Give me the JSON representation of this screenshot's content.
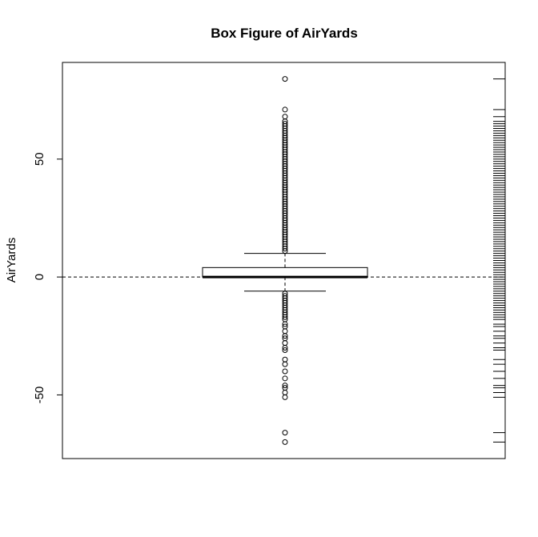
{
  "chart_data": {
    "type": "boxplot",
    "title": "Box Figure of AirYards",
    "xlabel": "",
    "ylabel": "AirYards",
    "ylim": [
      -77,
      91
    ],
    "yticks": [
      -50,
      0,
      50
    ],
    "ytick_labels": [
      "-50",
      "0",
      "50"
    ],
    "grid": false,
    "reference_line": {
      "y": 0,
      "style": "dashed"
    },
    "box": {
      "lower_whisker": -6,
      "q1": 0,
      "median": 0,
      "q3": 4,
      "upper_whisker": 10
    },
    "outliers_upper": [
      11,
      12,
      13,
      14,
      15,
      16,
      17,
      18,
      19,
      20,
      21,
      22,
      23,
      24,
      25,
      26,
      27,
      28,
      29,
      30,
      31,
      32,
      33,
      34,
      35,
      36,
      37,
      38,
      39,
      40,
      41,
      42,
      43,
      44,
      45,
      46,
      47,
      48,
      49,
      50,
      51,
      52,
      53,
      54,
      55,
      56,
      57,
      58,
      59,
      60,
      61,
      62,
      63,
      64,
      65,
      66,
      68,
      71,
      84
    ],
    "outliers_lower": [
      -7,
      -8,
      -9,
      -10,
      -11,
      -12,
      -13,
      -14,
      -15,
      -16,
      -17,
      -18,
      -20,
      -21,
      -23,
      -25,
      -26,
      -28,
      -30,
      -31,
      -35,
      -37,
      -40,
      -43,
      -46,
      -47,
      -49,
      -51,
      -66,
      -70
    ],
    "rug": [
      84,
      71,
      68,
      66,
      65,
      64,
      63,
      62,
      61,
      60,
      59,
      58,
      57,
      56,
      55,
      54,
      53,
      52,
      51,
      50,
      49,
      48,
      47,
      46,
      45,
      44,
      43,
      42,
      41,
      40,
      39,
      38,
      37,
      36,
      35,
      34,
      33,
      32,
      31,
      30,
      29,
      28,
      27,
      26,
      25,
      24,
      23,
      22,
      21,
      20,
      19,
      18,
      17,
      16,
      15,
      14,
      13,
      12,
      11,
      10,
      9,
      8,
      7,
      6,
      5,
      4,
      3,
      2,
      1,
      0,
      -1,
      -2,
      -3,
      -4,
      -5,
      -6,
      -7,
      -8,
      -9,
      -10,
      -11,
      -12,
      -13,
      -14,
      -15,
      -16,
      -17,
      -18,
      -20,
      -21,
      -23,
      -25,
      -26,
      -28,
      -30,
      -31,
      -35,
      -37,
      -40,
      -43,
      -46,
      -47,
      -49,
      -51,
      -66,
      -70
    ]
  }
}
